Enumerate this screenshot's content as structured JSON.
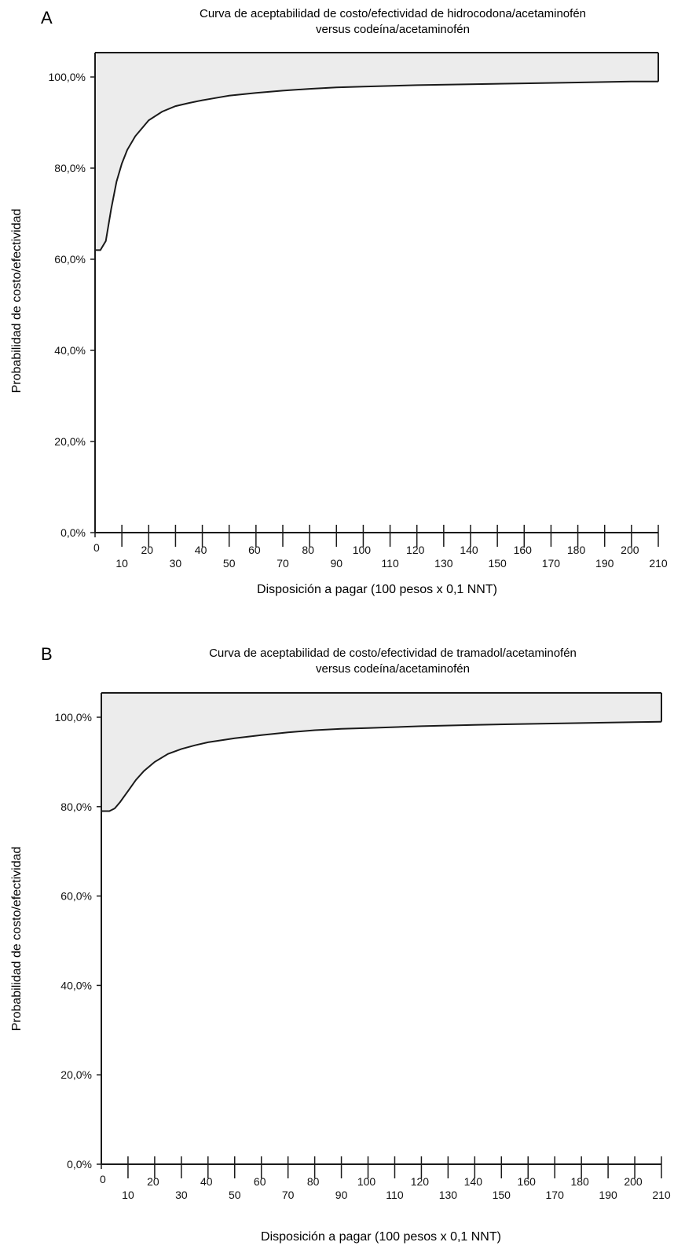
{
  "colors": {
    "fill": "#ececec",
    "line": "#1a1a1a",
    "axis": "#1a1a1a"
  },
  "chart_data": [
    {
      "panel": "A",
      "type": "area",
      "title_lines": [
        "Curva de aceptabilidad de costo/efectividad de hidrocodona/acetaminofén",
        "versus codeína/acetaminofén"
      ],
      "xlabel": "Disposición a pagar (100 pesos x 0,1 NNT)",
      "ylabel": "Probabilidad de costo/efectividad",
      "xlim": [
        0,
        210
      ],
      "ylim": [
        0,
        100
      ],
      "x_ticks": [
        0,
        10,
        20,
        30,
        40,
        50,
        60,
        70,
        80,
        90,
        100,
        110,
        120,
        130,
        140,
        150,
        160,
        170,
        180,
        190,
        200,
        210
      ],
      "y_ticks": [
        0,
        20,
        40,
        60,
        80,
        100
      ],
      "y_tick_labels": [
        "0,0%",
        "20,0%",
        "40,0%",
        "60,0%",
        "80,0%",
        "100,0%"
      ],
      "x": [
        0,
        2,
        4,
        6,
        8,
        10,
        12,
        15,
        20,
        25,
        30,
        35,
        40,
        45,
        50,
        55,
        60,
        70,
        80,
        90,
        100,
        120,
        140,
        160,
        180,
        200,
        210
      ],
      "y": [
        62,
        62,
        64,
        71,
        77,
        81,
        84,
        87,
        90.5,
        92.4,
        93.6,
        94.3,
        94.9,
        95.4,
        95.9,
        96.2,
        96.5,
        97.0,
        97.4,
        97.7,
        97.9,
        98.2,
        98.4,
        98.6,
        98.8,
        99.0,
        99.0
      ]
    },
    {
      "panel": "B",
      "type": "area",
      "title_lines": [
        "Curva de aceptabilidad de costo/efectividad de tramadol/acetaminofén",
        "versus codeína/acetaminofén"
      ],
      "xlabel": "Disposición a pagar (100 pesos x 0,1 NNT)",
      "ylabel": "Probabilidad de costo/efectividad",
      "xlim": [
        0,
        210
      ],
      "ylim": [
        0,
        100
      ],
      "x_ticks": [
        0,
        10,
        20,
        30,
        40,
        50,
        60,
        70,
        80,
        90,
        100,
        110,
        120,
        130,
        140,
        150,
        160,
        170,
        180,
        190,
        200,
        210
      ],
      "y_ticks": [
        0,
        20,
        40,
        60,
        80,
        100
      ],
      "y_tick_labels": [
        "0,0%",
        "20,0%",
        "40,0%",
        "60,0%",
        "80,0%",
        "100,0%"
      ],
      "x": [
        0,
        3,
        5,
        7,
        10,
        13,
        16,
        20,
        25,
        30,
        35,
        40,
        50,
        60,
        70,
        80,
        90,
        100,
        120,
        140,
        160,
        180,
        200,
        210
      ],
      "y": [
        79,
        79,
        79.6,
        81,
        83.5,
        86,
        88,
        90,
        91.8,
        92.9,
        93.7,
        94.4,
        95.3,
        96.0,
        96.6,
        97.1,
        97.4,
        97.6,
        98.0,
        98.3,
        98.5,
        98.7,
        98.9,
        99.0
      ]
    }
  ]
}
